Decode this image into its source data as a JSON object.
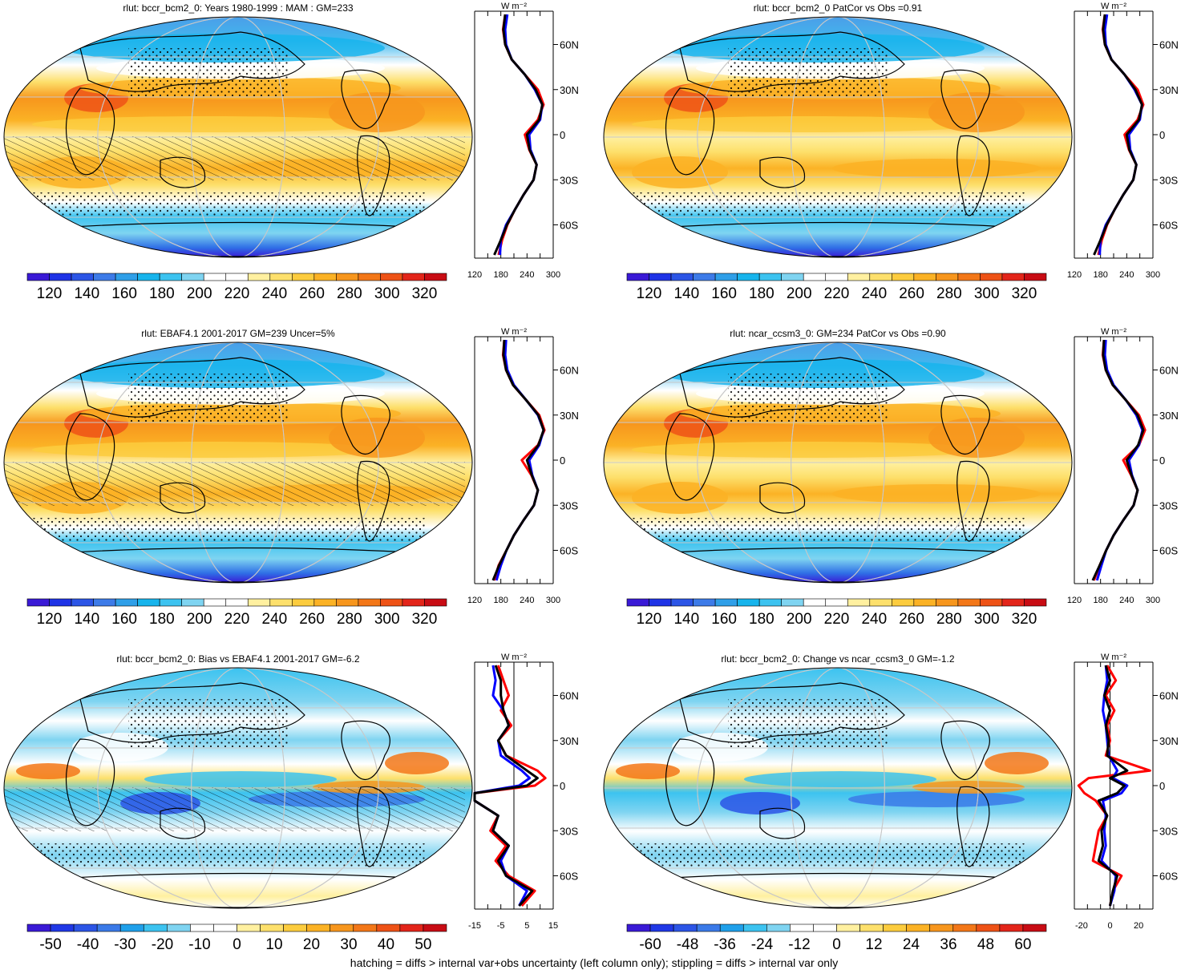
{
  "footer": "hatching = diffs > internal var+obs uncertainty (left column only); stippling = diffs > internal var only",
  "palettes": {
    "abs": [
      "#3a1ad6",
      "#1f33e6",
      "#2c55e6",
      "#3d7be8",
      "#2f9fe8",
      "#17b4ec",
      "#3cc3f0",
      "#7fd4f1",
      "#ffffff",
      "#ffffff",
      "#fff0a0",
      "#fde06c",
      "#fccc3e",
      "#fbb225",
      "#f7961d",
      "#f37718",
      "#ee5216",
      "#e3251a",
      "#c80c14"
    ],
    "diff": [
      "#3a1ad6",
      "#2038e6",
      "#2c55e6",
      "#3b7ae8",
      "#1fa0ea",
      "#3cc3f0",
      "#7fd4f1",
      "#ffffff",
      "#ffffff",
      "#fff0a0",
      "#fde06c",
      "#fccc3e",
      "#fbb225",
      "#f7961d",
      "#f37718",
      "#ee5216",
      "#e3251a",
      "#c80c14"
    ],
    "lines": {
      "model": "#0000ff",
      "obs": "#ff0000",
      "diff": "#000000",
      "zero": "#000000"
    }
  },
  "chart_data": [
    {
      "type": "heatmap",
      "title": "rlut: bccr_bcm2_0: Years 1980-1999 : MAM : GM=233",
      "colorbar": {
        "labels": [
          "120",
          "140",
          "160",
          "180",
          "200",
          "220",
          "240",
          "260",
          "280",
          "300",
          "320"
        ],
        "palette": "abs"
      },
      "zonal_mean": {
        "xlabels": [
          "120",
          "180",
          "240",
          "300"
        ],
        "xlim": [
          120,
          300
        ],
        "units_label": "W m⁻²",
        "ylabels": [
          "60N",
          "30N",
          "0",
          "30S",
          "60S"
        ],
        "series": [
          {
            "color": "obs",
            "lat": [
              80,
              70,
              60,
              50,
              40,
              30,
              20,
              10,
              0,
              -10,
              -20,
              -30,
              -40,
              -50,
              -60,
              -70,
              -80
            ],
            "values": [
              190,
              185,
              190,
              205,
              235,
              265,
              278,
              265,
              235,
              245,
              262,
              255,
              232,
              212,
              195,
              183,
              175
            ]
          },
          {
            "color": "model",
            "lat": [
              80,
              70,
              60,
              50,
              40,
              30,
              20,
              10,
              0,
              -10,
              -20,
              -30,
              -40,
              -50,
              -60,
              -70,
              -80
            ],
            "values": [
              195,
              190,
              192,
              205,
              235,
              258,
              275,
              270,
              245,
              248,
              262,
              255,
              232,
              212,
              192,
              180,
              178
            ]
          },
          {
            "color": "diff",
            "lat": [
              80,
              70,
              60,
              50,
              40,
              30,
              20,
              10,
              0,
              -10,
              -20,
              -30,
              -40,
              -50,
              -60,
              -70,
              -80
            ],
            "values": [
              190,
              186,
              190,
              205,
              235,
              260,
              275,
              268,
              240,
              246,
              262,
              255,
              232,
              212,
              194,
              180,
              165
            ]
          }
        ]
      }
    },
    {
      "type": "heatmap",
      "title": "rlut: bccr_bcm2_0 PatCor vs Obs =0.91",
      "colorbar": {
        "labels": [
          "120",
          "140",
          "160",
          "180",
          "200",
          "220",
          "240",
          "260",
          "280",
          "300",
          "320"
        ],
        "palette": "abs"
      },
      "zonal_mean": {
        "xlabels": [
          "120",
          "180",
          "240",
          "300"
        ],
        "xlim": [
          120,
          300
        ],
        "units_label": "W m⁻²",
        "ylabels": [
          "60N",
          "30N",
          "0",
          "30S",
          "60S"
        ],
        "series": [
          {
            "color": "obs",
            "lat": [
              80,
              70,
              60,
              50,
              40,
              30,
              20,
              10,
              0,
              -10,
              -20,
              -30,
              -40,
              -50,
              -60,
              -70,
              -80
            ],
            "values": [
              190,
              185,
              190,
              205,
              235,
              265,
              278,
              265,
              235,
              245,
              262,
              255,
              232,
              212,
              195,
              183,
              175
            ]
          },
          {
            "color": "model",
            "lat": [
              80,
              70,
              60,
              50,
              40,
              30,
              20,
              10,
              0,
              -10,
              -20,
              -30,
              -40,
              -50,
              -60,
              -70,
              -80
            ],
            "values": [
              195,
              190,
              192,
              205,
              235,
              258,
              275,
              270,
              245,
              248,
              262,
              255,
              232,
              212,
              192,
              180,
              178
            ]
          },
          {
            "color": "diff",
            "lat": [
              80,
              70,
              60,
              50,
              40,
              30,
              20,
              10,
              0,
              -10,
              -20,
              -30,
              -40,
              -50,
              -60,
              -70,
              -80
            ],
            "values": [
              190,
              186,
              190,
              205,
              235,
              260,
              275,
              268,
              240,
              246,
              262,
              255,
              232,
              212,
              194,
              180,
              165
            ]
          }
        ]
      }
    },
    {
      "type": "heatmap",
      "title": "rlut: EBAF4.1 2001-2017 GM=239 Uncer=5%",
      "colorbar": {
        "labels": [
          "120",
          "140",
          "160",
          "180",
          "200",
          "220",
          "240",
          "260",
          "280",
          "300",
          "320"
        ],
        "palette": "abs"
      },
      "zonal_mean": {
        "xlabels": [
          "120",
          "180",
          "240",
          "300"
        ],
        "xlim": [
          120,
          300
        ],
        "units_label": "W m⁻²",
        "ylabels": [
          "60N",
          "30N",
          "0",
          "30S",
          "60S"
        ],
        "series": [
          {
            "color": "obs",
            "lat": [
              80,
              70,
              60,
              50,
              40,
              30,
              20,
              10,
              0,
              -10,
              -20,
              -30,
              -40,
              -50,
              -60,
              -70,
              -80
            ],
            "values": [
              188,
              185,
              192,
              208,
              238,
              268,
              280,
              265,
              228,
              250,
              265,
              256,
              232,
              210,
              193,
              175,
              165
            ]
          },
          {
            "color": "model",
            "lat": [
              80,
              70,
              60,
              50,
              40,
              30,
              20,
              10,
              0,
              -10,
              -20,
              -30,
              -40,
              -50,
              -60,
              -70,
              -80
            ],
            "values": [
              192,
              190,
              195,
              210,
              238,
              265,
              278,
              268,
              245,
              252,
              265,
              256,
              232,
              210,
              193,
              180,
              170
            ]
          },
          {
            "color": "diff",
            "lat": [
              80,
              70,
              60,
              50,
              40,
              30,
              20,
              10,
              0,
              -10,
              -20,
              -30,
              -40,
              -50,
              -60,
              -70,
              -80
            ],
            "values": [
              188,
              186,
              192,
              208,
              238,
              266,
              278,
              266,
              240,
              251,
              265,
              256,
              232,
              210,
              193,
              176,
              162
            ]
          }
        ]
      }
    },
    {
      "type": "heatmap",
      "title": "rlut: ncar_ccsm3_0: GM=234 PatCor vs Obs =0.90",
      "colorbar": {
        "labels": [
          "120",
          "140",
          "160",
          "180",
          "200",
          "220",
          "240",
          "260",
          "280",
          "300",
          "320"
        ],
        "palette": "abs"
      },
      "zonal_mean": {
        "xlabels": [
          "120",
          "180",
          "240",
          "300"
        ],
        "xlim": [
          120,
          300
        ],
        "units_label": "W m⁻²",
        "ylabels": [
          "60N",
          "30N",
          "0",
          "30S",
          "60S"
        ],
        "series": [
          {
            "color": "obs",
            "lat": [
              80,
              70,
              60,
              50,
              40,
              30,
              20,
              10,
              0,
              -10,
              -20,
              -30,
              -40,
              -50,
              -60,
              -70,
              -80
            ],
            "values": [
              188,
              185,
              192,
              208,
              238,
              268,
              282,
              268,
              232,
              250,
              265,
              256,
              232,
              210,
              193,
              178,
              165
            ]
          },
          {
            "color": "model",
            "lat": [
              80,
              70,
              60,
              50,
              40,
              30,
              20,
              10,
              0,
              -10,
              -20,
              -30,
              -40,
              -50,
              -60,
              -70,
              -80
            ],
            "values": [
              192,
              190,
              195,
              210,
              238,
              262,
              276,
              268,
              245,
              252,
              265,
              256,
              232,
              210,
              193,
              182,
              172
            ]
          },
          {
            "color": "diff",
            "lat": [
              80,
              70,
              60,
              50,
              40,
              30,
              20,
              10,
              0,
              -10,
              -20,
              -30,
              -40,
              -50,
              -60,
              -70,
              -80
            ],
            "values": [
              188,
              186,
              192,
              208,
              238,
              265,
              278,
              266,
              240,
              251,
              265,
              256,
              232,
              210,
              193,
              178,
              162
            ]
          }
        ]
      }
    },
    {
      "type": "heatmap",
      "title": "rlut: bccr_bcm2_0: Bias vs EBAF4.1 2001-2017 GM=-6.2",
      "colorbar": {
        "labels": [
          "-50",
          "-40",
          "-30",
          "-20",
          "-10",
          "0",
          "10",
          "20",
          "30",
          "40",
          "50"
        ],
        "palette": "diff"
      },
      "zonal_mean": {
        "xlabels": [
          "-15",
          "-5",
          "5",
          "15"
        ],
        "xlim": [
          -15,
          15
        ],
        "units_label": "W m⁻²",
        "ylabels": [
          "60N",
          "30N",
          "0",
          "30S",
          "60S"
        ],
        "zero_line": 0,
        "series": [
          {
            "color": "obs",
            "lat": [
              80,
              70,
              60,
              50,
              40,
              30,
              20,
              10,
              5,
              0,
              -5,
              -10,
              -20,
              -30,
              -40,
              -50,
              -60,
              -70,
              -80
            ],
            "values": [
              -6,
              -4,
              -2,
              -5,
              -1,
              -6,
              -3,
              9,
              12,
              8,
              -15,
              -15,
              -6,
              -9,
              -3,
              -7,
              -2,
              8,
              3
            ]
          },
          {
            "color": "model",
            "lat": [
              80,
              70,
              60,
              50,
              40,
              30,
              20,
              10,
              5,
              0,
              -5,
              -10,
              -20,
              -30,
              -40,
              -50,
              -60,
              -70,
              -80
            ],
            "values": [
              -8,
              -7,
              -8,
              -4,
              -2,
              -6,
              -5,
              3,
              6,
              2,
              -15,
              -15,
              -6,
              -8,
              -2,
              -5,
              -3,
              5,
              2
            ]
          },
          {
            "color": "diff",
            "lat": [
              80,
              70,
              60,
              50,
              40,
              30,
              20,
              10,
              5,
              0,
              -5,
              -10,
              -20,
              -30,
              -40,
              -50,
              -60,
              -70,
              -80
            ],
            "values": [
              -7,
              -5,
              -5,
              -4,
              -2,
              -6,
              -3,
              5,
              9,
              5,
              -15,
              -15,
              -6,
              -8,
              -2,
              -6,
              -3,
              7,
              2
            ]
          }
        ]
      }
    },
    {
      "type": "heatmap",
      "title": "rlut: bccr_bcm2_0: Change vs ncar_ccsm3_0 GM=-1.2",
      "colorbar": {
        "labels": [
          "-60",
          "-48",
          "-36",
          "-24",
          "-12",
          "0",
          "12",
          "24",
          "36",
          "48",
          "60"
        ],
        "palette": "diff"
      },
      "zonal_mean": {
        "xlabels": [
          "-20",
          "0",
          "20"
        ],
        "xlim": [
          -25,
          30
        ],
        "units_label": "W m⁻²",
        "ylabels": [
          "60N",
          "30N",
          "0",
          "30S",
          "60S"
        ],
        "zero_line": 0,
        "series": [
          {
            "color": "obs",
            "lat": [
              80,
              70,
              60,
              50,
              40,
              30,
              20,
              10,
              5,
              0,
              -5,
              -10,
              -20,
              -30,
              -40,
              -50,
              -60,
              -70,
              -80
            ],
            "values": [
              -2,
              4,
              -3,
              3,
              -2,
              0,
              -3,
              28,
              -15,
              -22,
              -18,
              -10,
              -2,
              -8,
              -10,
              -12,
              8,
              2,
              0
            ]
          },
          {
            "color": "model",
            "lat": [
              80,
              70,
              60,
              50,
              40,
              30,
              20,
              10,
              5,
              0,
              -5,
              -10,
              -20,
              -30,
              -40,
              -50,
              -60,
              -70,
              -80
            ],
            "values": [
              -3,
              -2,
              -4,
              -5,
              -3,
              -2,
              -1,
              5,
              2,
              12,
              8,
              -5,
              -3,
              -4,
              -3,
              -6,
              4,
              3,
              0
            ]
          },
          {
            "color": "diff",
            "lat": [
              80,
              70,
              60,
              50,
              40,
              30,
              20,
              10,
              5,
              0,
              -5,
              -10,
              -20,
              -30,
              -40,
              -50,
              -60,
              -70,
              -80
            ],
            "values": [
              -3,
              0,
              -4,
              0,
              -3,
              -1,
              -2,
              12,
              0,
              10,
              5,
              -8,
              -2,
              -6,
              -5,
              -8,
              5,
              2,
              0
            ]
          }
        ]
      }
    }
  ]
}
